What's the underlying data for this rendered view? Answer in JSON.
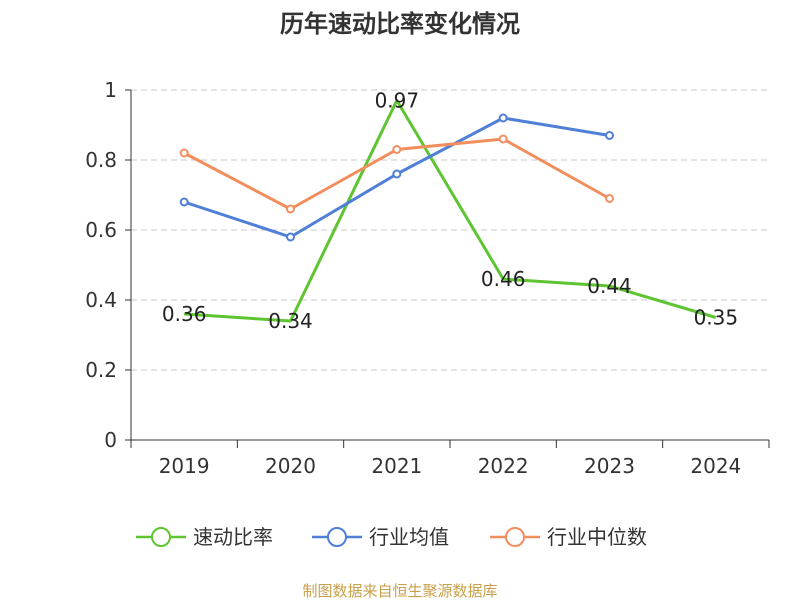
{
  "colors": {
    "series_green": "#5ec431",
    "series_blue": "#4f7fd6",
    "series_orange": "#f28e5e",
    "source_text": "#c8a04a"
  },
  "source": "制图数据来自恒生聚源数据库",
  "chart_data": {
    "type": "line",
    "title": "历年速动比率变化情况",
    "categories": [
      "2019",
      "2020",
      "2021",
      "2022",
      "2023",
      "2024"
    ],
    "ylim": [
      0,
      1
    ],
    "yticks": [
      0,
      0.2,
      0.4,
      0.6,
      0.8,
      1
    ],
    "ytick_labels": [
      "0",
      "0.2",
      "0.4",
      "0.6",
      "0.8",
      "1"
    ],
    "grid": true,
    "legend_position": "bottom",
    "series": [
      {
        "name": "速动比率",
        "color": "#5ec431",
        "values": [
          0.36,
          0.34,
          0.97,
          0.46,
          0.44,
          0.35
        ],
        "labels": [
          "0.36",
          "0.34",
          "0.97",
          "0.46",
          "0.44",
          "0.35"
        ],
        "markers": false
      },
      {
        "name": "行业均值",
        "color": "#4f7fd6",
        "values": [
          0.68,
          0.58,
          0.76,
          0.92,
          0.87,
          null
        ],
        "markers": true
      },
      {
        "name": "行业中位数",
        "color": "#f28e5e",
        "values": [
          0.82,
          0.66,
          0.83,
          0.86,
          0.69,
          null
        ],
        "markers": true
      }
    ]
  }
}
